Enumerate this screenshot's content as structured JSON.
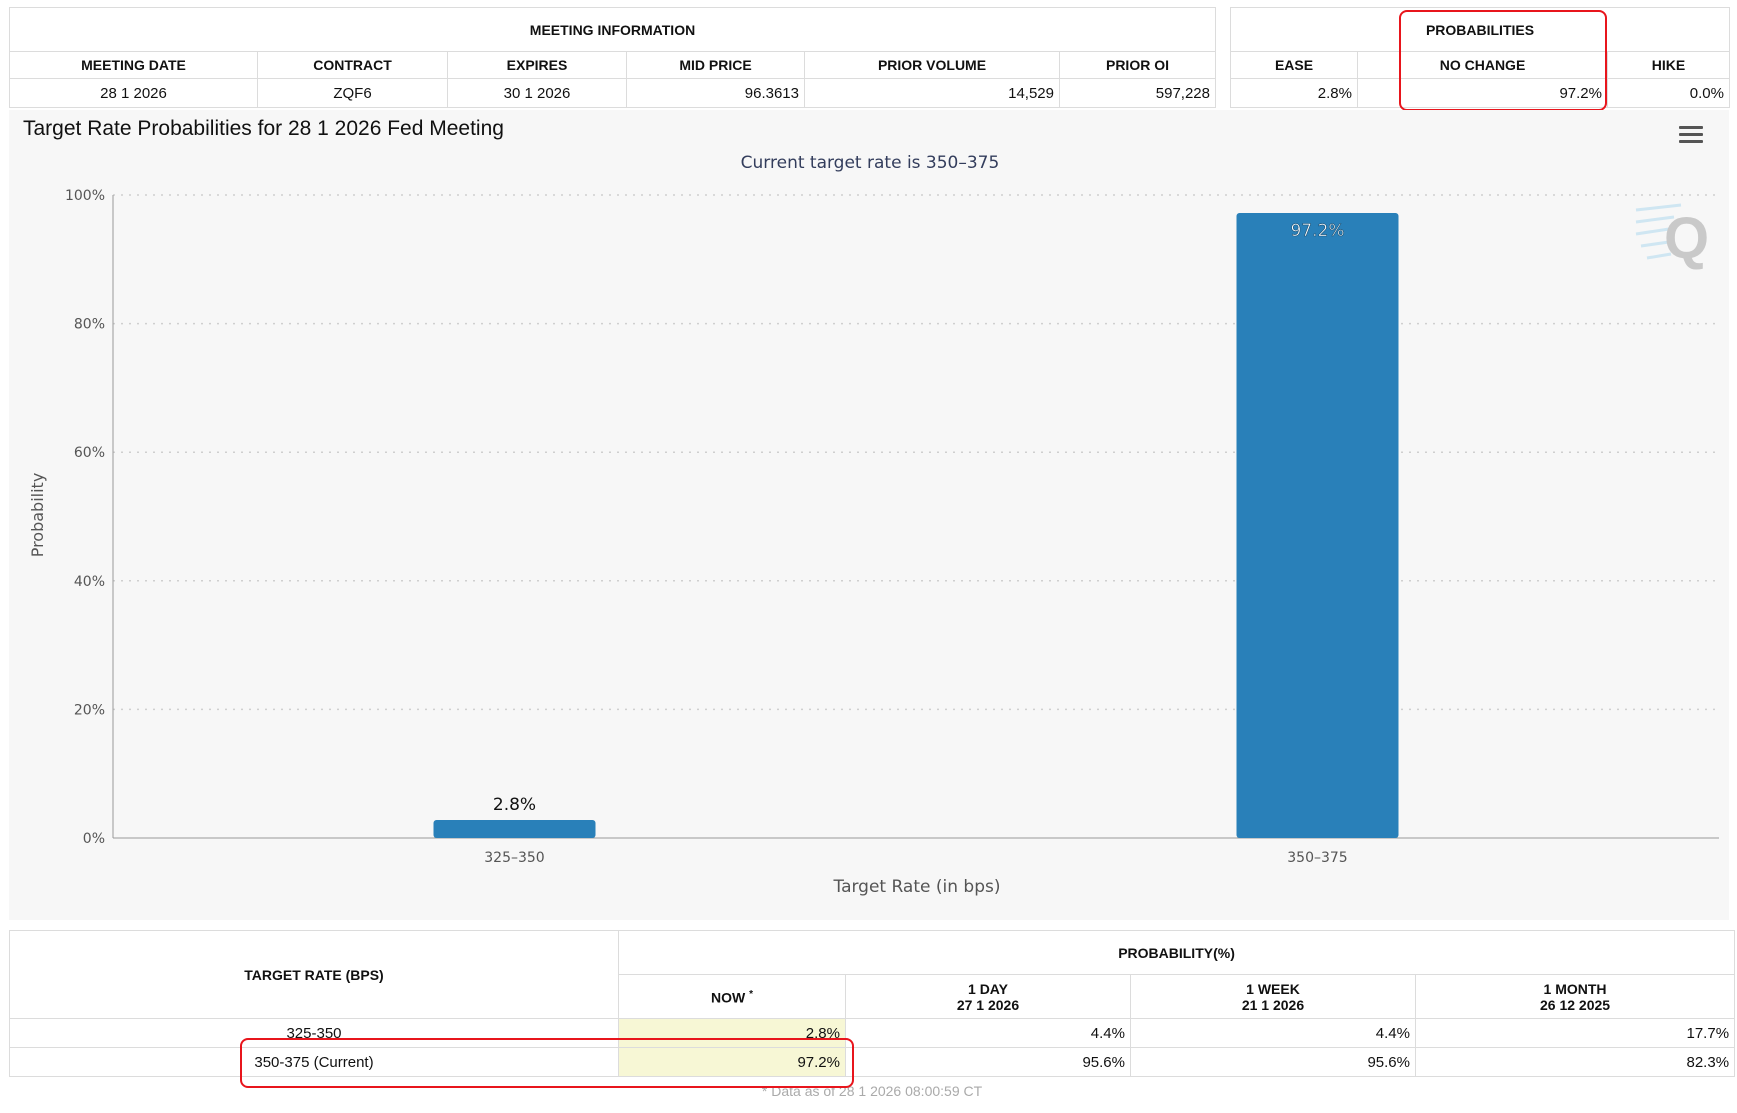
{
  "meeting_info": {
    "title": "MEETING INFORMATION",
    "columns": [
      "MEETING DATE",
      "CONTRACT",
      "EXPIRES",
      "MID PRICE",
      "PRIOR VOLUME",
      "PRIOR OI"
    ],
    "values": [
      "28 1 2026",
      "ZQF6",
      "30 1 2026",
      "96.3613",
      "14,529",
      "597,228"
    ]
  },
  "probabilities": {
    "title": "PROBABILITIES",
    "columns": [
      "EASE",
      "NO CHANGE",
      "HIKE"
    ],
    "values": [
      "2.8%",
      "97.2%",
      "0.0%"
    ]
  },
  "chart_data": {
    "type": "bar",
    "title": "Target Rate Probabilities for 28 1 2026 Fed Meeting",
    "subtitle": "Current target rate is 350–375",
    "xlabel": "Target Rate (in bps)",
    "ylabel": "Probability",
    "categories": [
      "325–350",
      "350–375"
    ],
    "values": [
      2.8,
      97.2
    ],
    "data_labels": [
      "2.8%",
      "97.2%"
    ],
    "ylim": [
      0,
      100
    ],
    "yticks": [
      0,
      20,
      40,
      60,
      80,
      100
    ],
    "ytick_labels": [
      "0%",
      "20%",
      "40%",
      "60%",
      "80%",
      "100%"
    ],
    "grid": true,
    "bar_color": "#2980b9",
    "watermark": "Q"
  },
  "rate_table": {
    "col_target": "TARGET RATE (BPS)",
    "col_prob": "PROBABILITY(%)",
    "col_now": "NOW",
    "col_now_mark": "*",
    "col_1day": "1 DAY",
    "col_1day_date": "27 1 2026",
    "col_1week": "1 WEEK",
    "col_1week_date": "21 1 2026",
    "col_1month": "1 MONTH",
    "col_1month_date": "26 12 2025",
    "rows": [
      {
        "rate": "325-350",
        "now": "2.8%",
        "day": "4.4%",
        "week": "4.4%",
        "month": "17.7%"
      },
      {
        "rate": "350-375 (Current)",
        "now": "97.2%",
        "day": "95.6%",
        "week": "95.6%",
        "month": "82.3%"
      }
    ],
    "footnote": "* Data as of 28 1 2026 08:00:59 CT"
  },
  "colors": {
    "highlight": "#e8151c",
    "now_column": "#f7f7d5",
    "chart_bg": "#f7f7f7"
  }
}
